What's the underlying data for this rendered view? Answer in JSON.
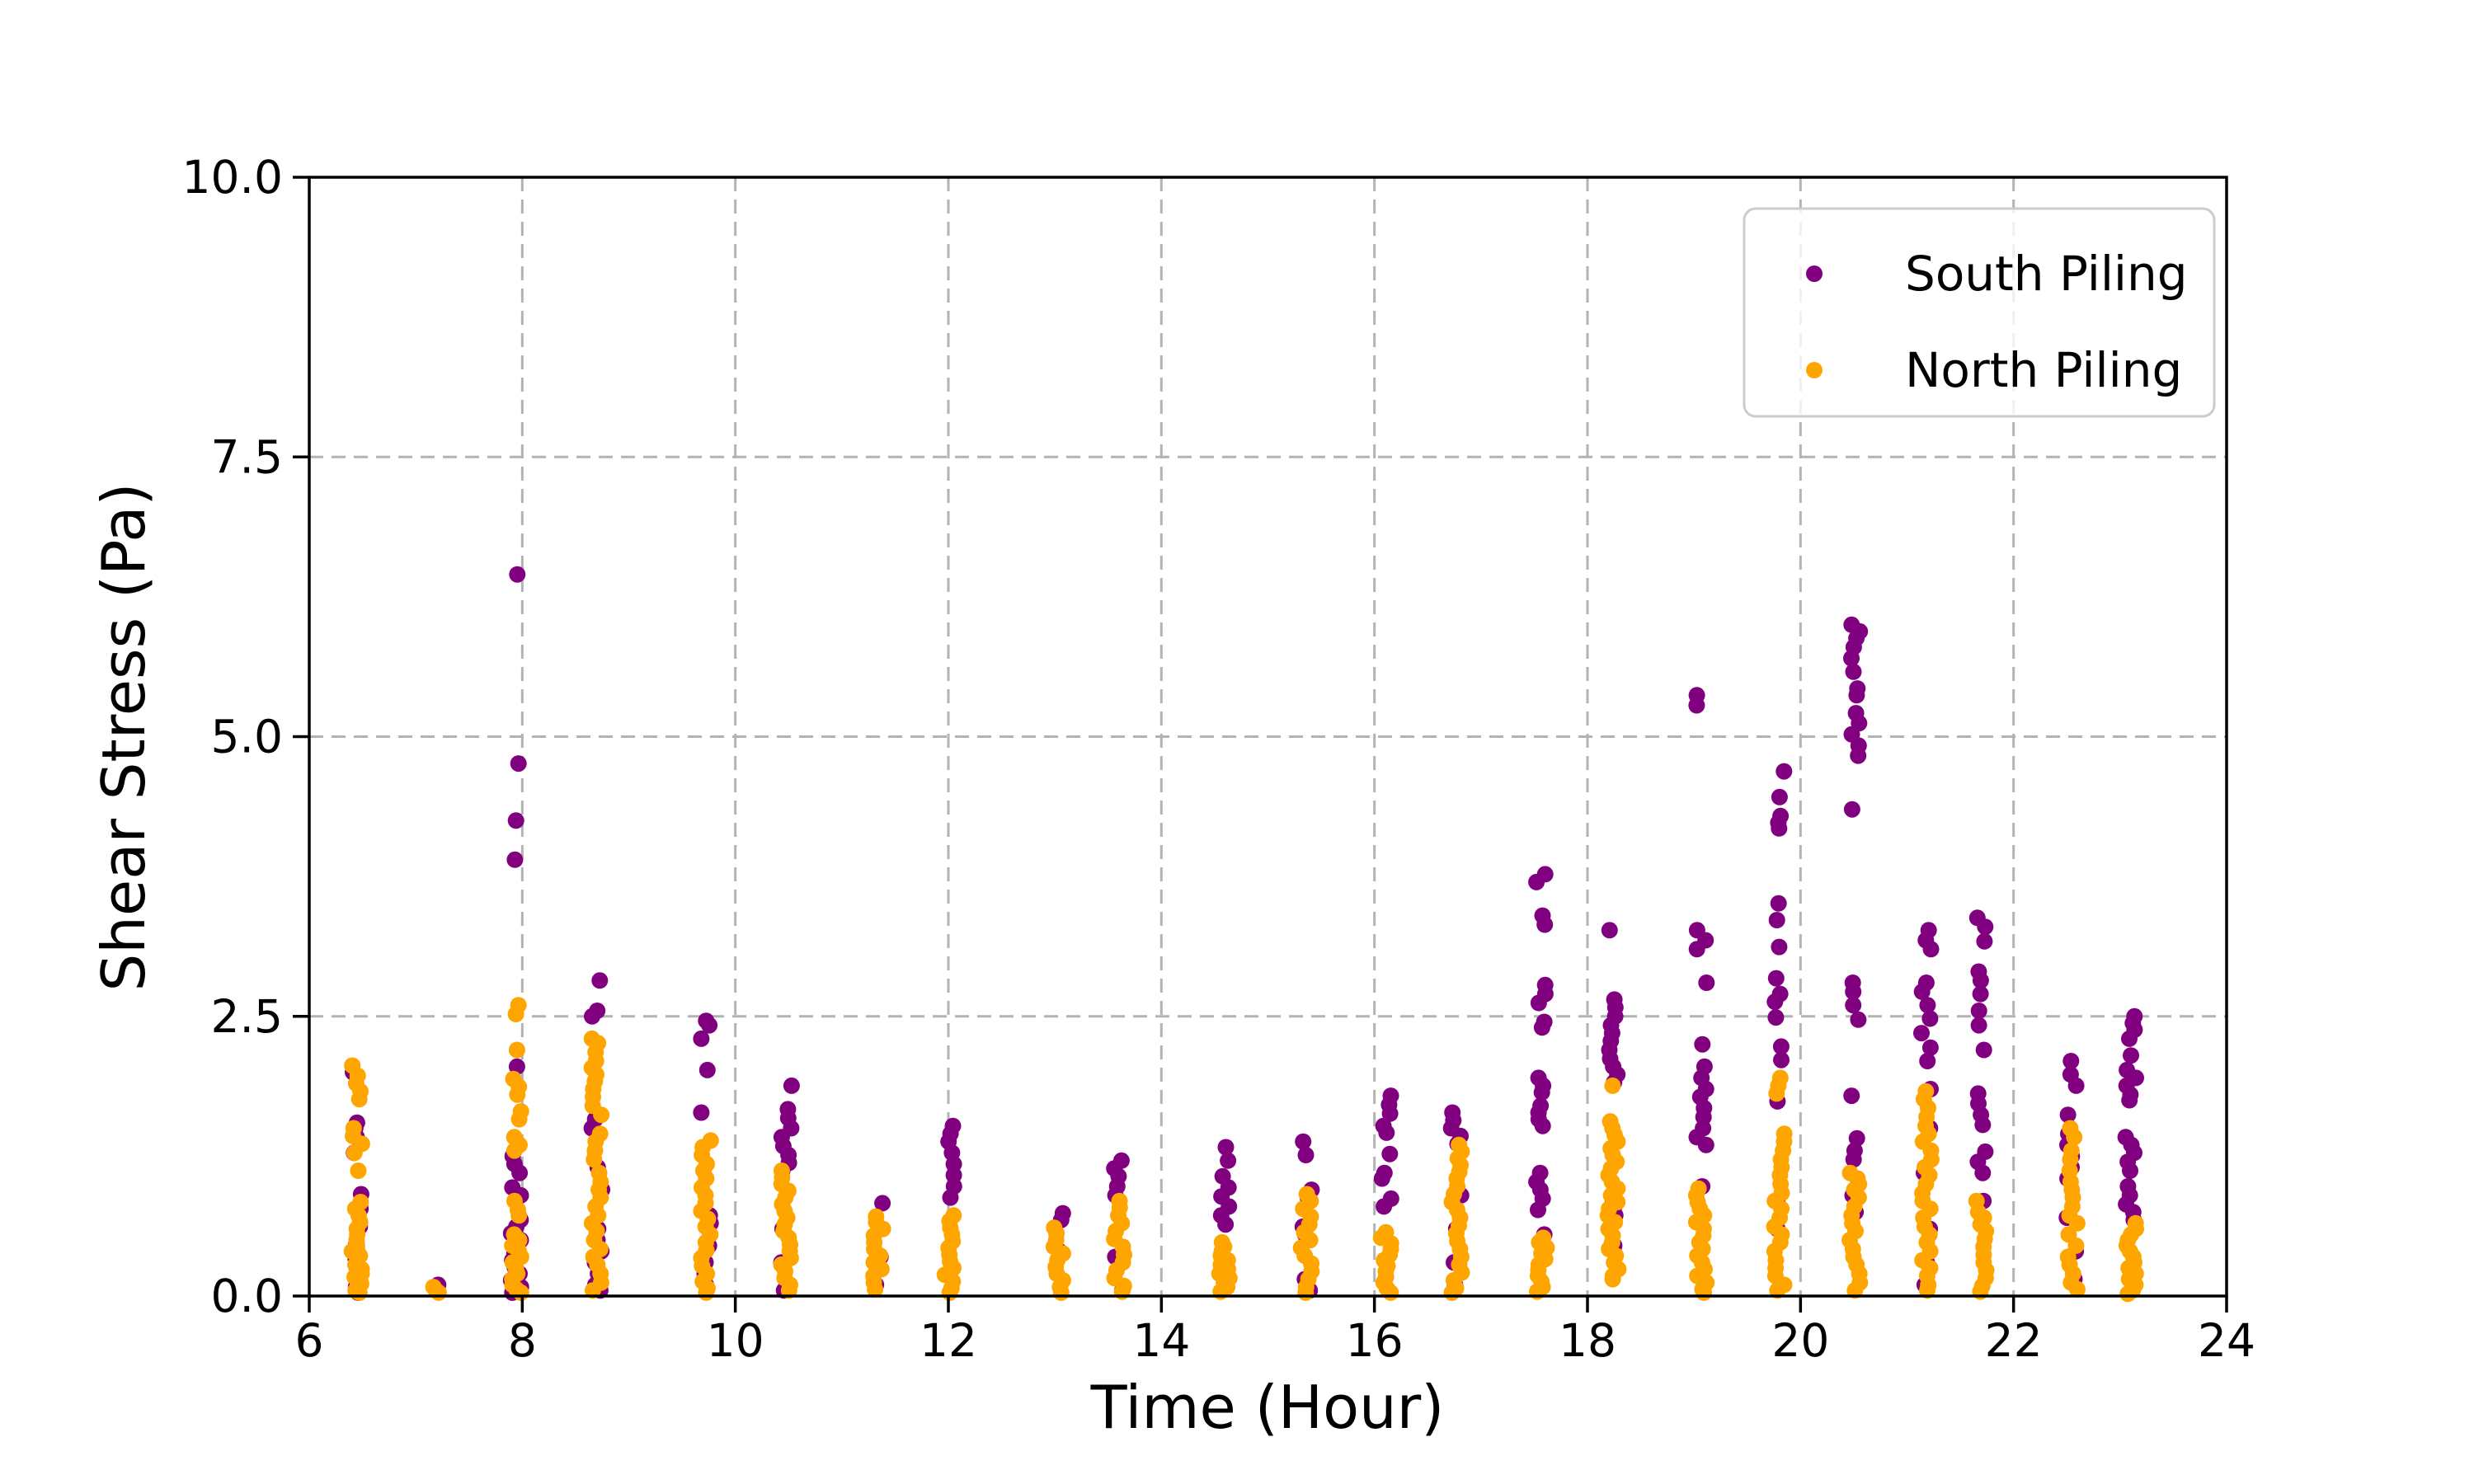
{
  "figure": {
    "background_color": "#ffffff",
    "text_color": "#000000",
    "spine_color": "#000000"
  },
  "chart_data": {
    "type": "scatter",
    "title": "",
    "xlabel": "Time (Hour)",
    "ylabel": "Shear Stress (Pa)",
    "xlim": [
      6,
      24
    ],
    "ylim": [
      0,
      10
    ],
    "x_ticks": {
      "values": [
        6,
        8,
        10,
        12,
        14,
        16,
        18,
        20,
        22,
        24
      ],
      "labels": [
        "6",
        "8",
        "10",
        "12",
        "14",
        "16",
        "18",
        "20",
        "22",
        "24"
      ]
    },
    "y_ticks": {
      "values": [
        0,
        2.5,
        5,
        7.5,
        10
      ],
      "labels": [
        "0.0",
        "2.5",
        "5.0",
        "7.5",
        "10.0"
      ]
    },
    "grid": {
      "on": true,
      "color": "#b3b3b3",
      "style": "dashed"
    },
    "legend": {
      "position": "upper right",
      "border_color": "#cccccc",
      "fill": "rgba(255,255,255,0.8)"
    },
    "marker_radius": 10,
    "x_jitter": 0.05,
    "series": [
      {
        "name": "South Piling",
        "color": "#800080",
        "clusters": [
          {
            "t": 6.45,
            "values": [
              2.0,
              1.55,
              1.5,
              1.42,
              1.28,
              0.91,
              0.78,
              0.62,
              0.47,
              0.4,
              0.33,
              0.27,
              0.2,
              0.14,
              0.08,
              0.03
            ]
          },
          {
            "t": 7.18,
            "values": [
              0.1
            ]
          },
          {
            "t": 7.94,
            "values": [
              6.45,
              4.76,
              4.25,
              3.9,
              2.05,
              1.25,
              1.18,
              1.1,
              0.97,
              0.9,
              0.68,
              0.62,
              0.56,
              0.5,
              0.44,
              0.38,
              0.32,
              0.26,
              0.2,
              0.14,
              0.08,
              0.03
            ]
          },
          {
            "t": 8.7,
            "values": [
              2.82,
              2.55,
              2.5,
              1.58,
              1.5,
              1.15,
              0.95,
              0.6,
              0.5,
              0.4,
              0.3,
              0.2,
              0.1,
              0.05
            ]
          },
          {
            "t": 9.72,
            "values": [
              2.46,
              2.42,
              2.3,
              2.02,
              1.64,
              0.72,
              0.65,
              0.45,
              0.3,
              0.2,
              0.1
            ]
          },
          {
            "t": 10.48,
            "values": [
              1.88,
              1.67,
              1.59,
              1.5,
              1.42,
              1.34,
              1.26,
              1.19,
              1.12,
              0.6,
              0.3,
              0.05
            ]
          },
          {
            "t": 11.34,
            "values": [
              0.83,
              0.35,
              0.1
            ]
          },
          {
            "t": 12.01,
            "values": [
              1.52,
              1.45,
              1.38,
              1.28,
              1.18,
              1.08,
              0.98,
              0.88
            ]
          },
          {
            "t": 13.03,
            "values": [
              0.74,
              0.68,
              0.4
            ]
          },
          {
            "t": 13.6,
            "values": [
              1.21,
              1.14,
              1.07,
              0.98,
              0.9,
              0.35,
              0.05
            ]
          },
          {
            "t": 14.59,
            "values": [
              1.33,
              1.21,
              1.07,
              0.97,
              0.89,
              0.8,
              0.72,
              0.64,
              0.3
            ]
          },
          {
            "t": 15.36,
            "values": [
              1.38,
              1.26,
              0.95,
              0.88,
              0.62,
              0.55,
              0.15,
              0.05
            ]
          },
          {
            "t": 16.11,
            "values": [
              1.79,
              1.71,
              1.63,
              1.52,
              1.46,
              1.27,
              1.1,
              1.05,
              0.87,
              0.8
            ]
          },
          {
            "t": 16.77,
            "values": [
              1.64,
              1.57,
              1.5,
              1.43,
              1.36,
              0.9,
              0.6,
              0.3,
              0.1
            ]
          },
          {
            "t": 17.57,
            "values": [
              3.77,
              3.7,
              3.4,
              3.32,
              2.78,
              2.7,
              2.62,
              2.45,
              2.4,
              1.95,
              1.88,
              1.82,
              1.7,
              1.64,
              1.58,
              1.52,
              1.1,
              1.02,
              0.95,
              0.87,
              0.77,
              0.55
            ]
          },
          {
            "t": 18.24,
            "values": [
              3.27,
              2.65,
              2.58,
              2.5,
              2.42,
              2.35,
              2.28,
              2.2,
              2.12,
              2.05,
              1.98,
              1.91,
              0.85,
              0.78,
              0.72,
              0.45
            ]
          },
          {
            "t": 19.07,
            "values": [
              5.37,
              5.28,
              3.27,
              3.18,
              3.1,
              2.8,
              2.25,
              2.05,
              1.95,
              1.85,
              1.78,
              1.68,
              1.6,
              1.5,
              1.42,
              1.35,
              0.98
            ]
          },
          {
            "t": 19.8,
            "values": [
              4.69,
              4.46,
              4.29,
              4.23,
              4.18,
              3.51,
              3.36,
              3.12,
              2.84,
              2.7,
              2.63,
              2.49,
              2.23,
              2.11,
              1.74,
              0.85,
              0.6
            ]
          },
          {
            "t": 20.51,
            "values": [
              6.0,
              5.94,
              5.88,
              5.8,
              5.7,
              5.58,
              5.43,
              5.37,
              5.21,
              5.12,
              5.02,
              4.92,
              4.83,
              4.35,
              2.8,
              2.72,
              2.6,
              2.47,
              1.79,
              1.41,
              1.3,
              1.22,
              0.9,
              0.75
            ]
          },
          {
            "t": 21.18,
            "values": [
              3.27,
              3.18,
              3.1,
              2.8,
              2.72,
              2.6,
              2.48,
              2.35,
              2.22,
              2.1,
              1.85,
              1.5,
              1.1,
              0.6,
              0.3,
              0.1
            ]
          },
          {
            "t": 21.7,
            "values": [
              3.38,
              3.3,
              3.17,
              2.9,
              2.82,
              2.7,
              2.55,
              2.42,
              2.2,
              1.81,
              1.72,
              1.62,
              1.53,
              1.29,
              1.2,
              1.1,
              0.85
            ]
          },
          {
            "t": 22.55,
            "values": [
              2.1,
              1.98,
              1.88,
              1.62,
              1.45,
              1.35,
              1.25,
              1.15,
              1.05,
              0.7,
              0.4,
              0.15
            ]
          },
          {
            "t": 23.1,
            "values": [
              2.5,
              2.44,
              2.38,
              2.3,
              2.15,
              2.02,
              1.95,
              1.88,
              1.8,
              1.75,
              1.42,
              1.35,
              1.28,
              1.2,
              1.12,
              0.98,
              0.9,
              0.82,
              0.75,
              0.68
            ]
          }
        ]
      },
      {
        "name": "North Piling",
        "color": "#FFA500",
        "clusters": [
          {
            "t": 6.45,
            "values": [
              2.06,
              1.97,
              1.9,
              1.83,
              1.76,
              1.5,
              1.43,
              1.36,
              1.28,
              1.12,
              0.84,
              0.78,
              0.72,
              0.66,
              0.6,
              0.55,
              0.5,
              0.45,
              0.4,
              0.36,
              0.32,
              0.28,
              0.24,
              0.2,
              0.17,
              0.14,
              0.11,
              0.08,
              0.05,
              0.03
            ]
          },
          {
            "t": 7.18,
            "values": [
              0.08,
              0.05,
              0.03
            ]
          },
          {
            "t": 7.94,
            "values": [
              2.6,
              2.52,
              2.2,
              1.94,
              1.87,
              1.8,
              1.65,
              1.58,
              1.42,
              1.35,
              1.3,
              0.85,
              0.77,
              0.72,
              0.55,
              0.5,
              0.45,
              0.4,
              0.35,
              0.3,
              0.25,
              0.2,
              0.15,
              0.1,
              0.06,
              0.03
            ]
          },
          {
            "t": 8.7,
            "values": [
              2.3,
              2.26,
              2.18,
              2.1,
              2.04,
              1.98,
              1.92,
              1.85,
              1.78,
              1.7,
              1.62,
              1.45,
              1.38,
              1.3,
              1.22,
              1.1,
              1.02,
              0.95,
              0.88,
              0.8,
              0.72,
              0.65,
              0.58,
              0.5,
              0.42,
              0.35,
              0.28,
              0.2,
              0.12,
              0.05
            ]
          },
          {
            "t": 9.72,
            "values": [
              1.39,
              1.33,
              1.26,
              1.18,
              1.12,
              1.05,
              0.97,
              0.9,
              0.83,
              0.76,
              0.69,
              0.62,
              0.55,
              0.48,
              0.41,
              0.34,
              0.27,
              0.2,
              0.13,
              0.07,
              0.03
            ]
          },
          {
            "t": 10.48,
            "values": [
              1.12,
              1.06,
              1.0,
              0.94,
              0.88,
              0.82,
              0.76,
              0.7,
              0.64,
              0.58,
              0.52,
              0.46,
              0.4,
              0.34,
              0.28,
              0.22,
              0.16,
              0.1,
              0.05
            ]
          },
          {
            "t": 11.34,
            "values": [
              0.71,
              0.66,
              0.6,
              0.54,
              0.48,
              0.42,
              0.36,
              0.3,
              0.24,
              0.18,
              0.12,
              0.06
            ]
          },
          {
            "t": 12.01,
            "values": [
              0.72,
              0.67,
              0.61,
              0.55,
              0.49,
              0.43,
              0.37,
              0.31,
              0.25,
              0.19,
              0.13,
              0.07,
              0.03
            ]
          },
          {
            "t": 13.03,
            "values": [
              0.61,
              0.56,
              0.5,
              0.44,
              0.38,
              0.32,
              0.26,
              0.2,
              0.14,
              0.08,
              0.03
            ]
          },
          {
            "t": 13.6,
            "values": [
              0.85,
              0.79,
              0.72,
              0.65,
              0.58,
              0.51,
              0.44,
              0.37,
              0.3,
              0.23,
              0.16,
              0.09,
              0.04
            ]
          },
          {
            "t": 14.59,
            "values": [
              0.48,
              0.44,
              0.4,
              0.36,
              0.32,
              0.28,
              0.24,
              0.2,
              0.16,
              0.12,
              0.08,
              0.04
            ]
          },
          {
            "t": 15.36,
            "values": [
              0.91,
              0.85,
              0.78,
              0.71,
              0.64,
              0.57,
              0.5,
              0.43,
              0.36,
              0.29,
              0.22,
              0.15,
              0.08,
              0.03
            ]
          },
          {
            "t": 16.11,
            "values": [
              0.57,
              0.52,
              0.47,
              0.42,
              0.37,
              0.32,
              0.27,
              0.22,
              0.17,
              0.12,
              0.07,
              0.03
            ]
          },
          {
            "t": 16.77,
            "values": [
              1.35,
              1.29,
              1.23,
              1.17,
              1.11,
              1.05,
              0.98,
              0.91,
              0.84,
              0.77,
              0.7,
              0.63,
              0.56,
              0.49,
              0.42,
              0.35,
              0.28,
              0.21,
              0.14,
              0.07,
              0.03
            ]
          },
          {
            "t": 17.57,
            "values": [
              0.52,
              0.48,
              0.43,
              0.38,
              0.33,
              0.28,
              0.23,
              0.18,
              0.13,
              0.08,
              0.04
            ]
          },
          {
            "t": 18.24,
            "values": [
              1.88,
              1.56,
              1.5,
              1.44,
              1.38,
              1.32,
              1.26,
              1.2,
              1.14,
              1.08,
              1.02,
              0.96,
              0.9,
              0.84,
              0.78,
              0.72,
              0.66,
              0.6,
              0.54,
              0.48,
              0.42,
              0.36,
              0.3,
              0.24,
              0.18,
              0.15
            ]
          },
          {
            "t": 19.07,
            "values": [
              0.96,
              0.9,
              0.84,
              0.78,
              0.72,
              0.66,
              0.6,
              0.54,
              0.48,
              0.42,
              0.36,
              0.3,
              0.24,
              0.18,
              0.12,
              0.06,
              0.03
            ]
          },
          {
            "t": 19.8,
            "values": [
              1.95,
              1.88,
              1.81,
              1.45,
              1.38,
              1.3,
              1.22,
              1.15,
              1.08,
              1.0,
              0.92,
              0.85,
              0.78,
              0.7,
              0.62,
              0.55,
              0.48,
              0.4,
              0.32,
              0.25,
              0.18,
              0.1,
              0.05
            ]
          },
          {
            "t": 20.51,
            "values": [
              1.1,
              1.05,
              1.0,
              0.95,
              0.88,
              0.8,
              0.72,
              0.65,
              0.58,
              0.5,
              0.42,
              0.35,
              0.28,
              0.2,
              0.12,
              0.05
            ]
          },
          {
            "t": 21.18,
            "values": [
              1.83,
              1.76,
              1.68,
              1.6,
              1.52,
              1.45,
              1.38,
              1.3,
              1.22,
              1.15,
              1.08,
              1.0,
              0.92,
              0.85,
              0.78,
              0.7,
              0.62,
              0.55,
              0.48,
              0.4,
              0.32,
              0.25,
              0.18,
              0.1,
              0.05
            ]
          },
          {
            "t": 21.7,
            "values": [
              0.85,
              0.75,
              0.7,
              0.64,
              0.58,
              0.51,
              0.44,
              0.37,
              0.3,
              0.23,
              0.16,
              0.09,
              0.04
            ]
          },
          {
            "t": 22.55,
            "values": [
              1.5,
              1.42,
              1.3,
              1.22,
              1.12,
              1.02,
              0.95,
              0.88,
              0.8,
              0.72,
              0.65,
              0.55,
              0.45,
              0.35,
              0.28,
              0.2,
              0.12,
              0.06
            ]
          },
          {
            "t": 23.1,
            "values": [
              0.65,
              0.6,
              0.55,
              0.5,
              0.45,
              0.4,
              0.35,
              0.3,
              0.25,
              0.2,
              0.15,
              0.1,
              0.05,
              0.02
            ]
          }
        ]
      }
    ]
  }
}
